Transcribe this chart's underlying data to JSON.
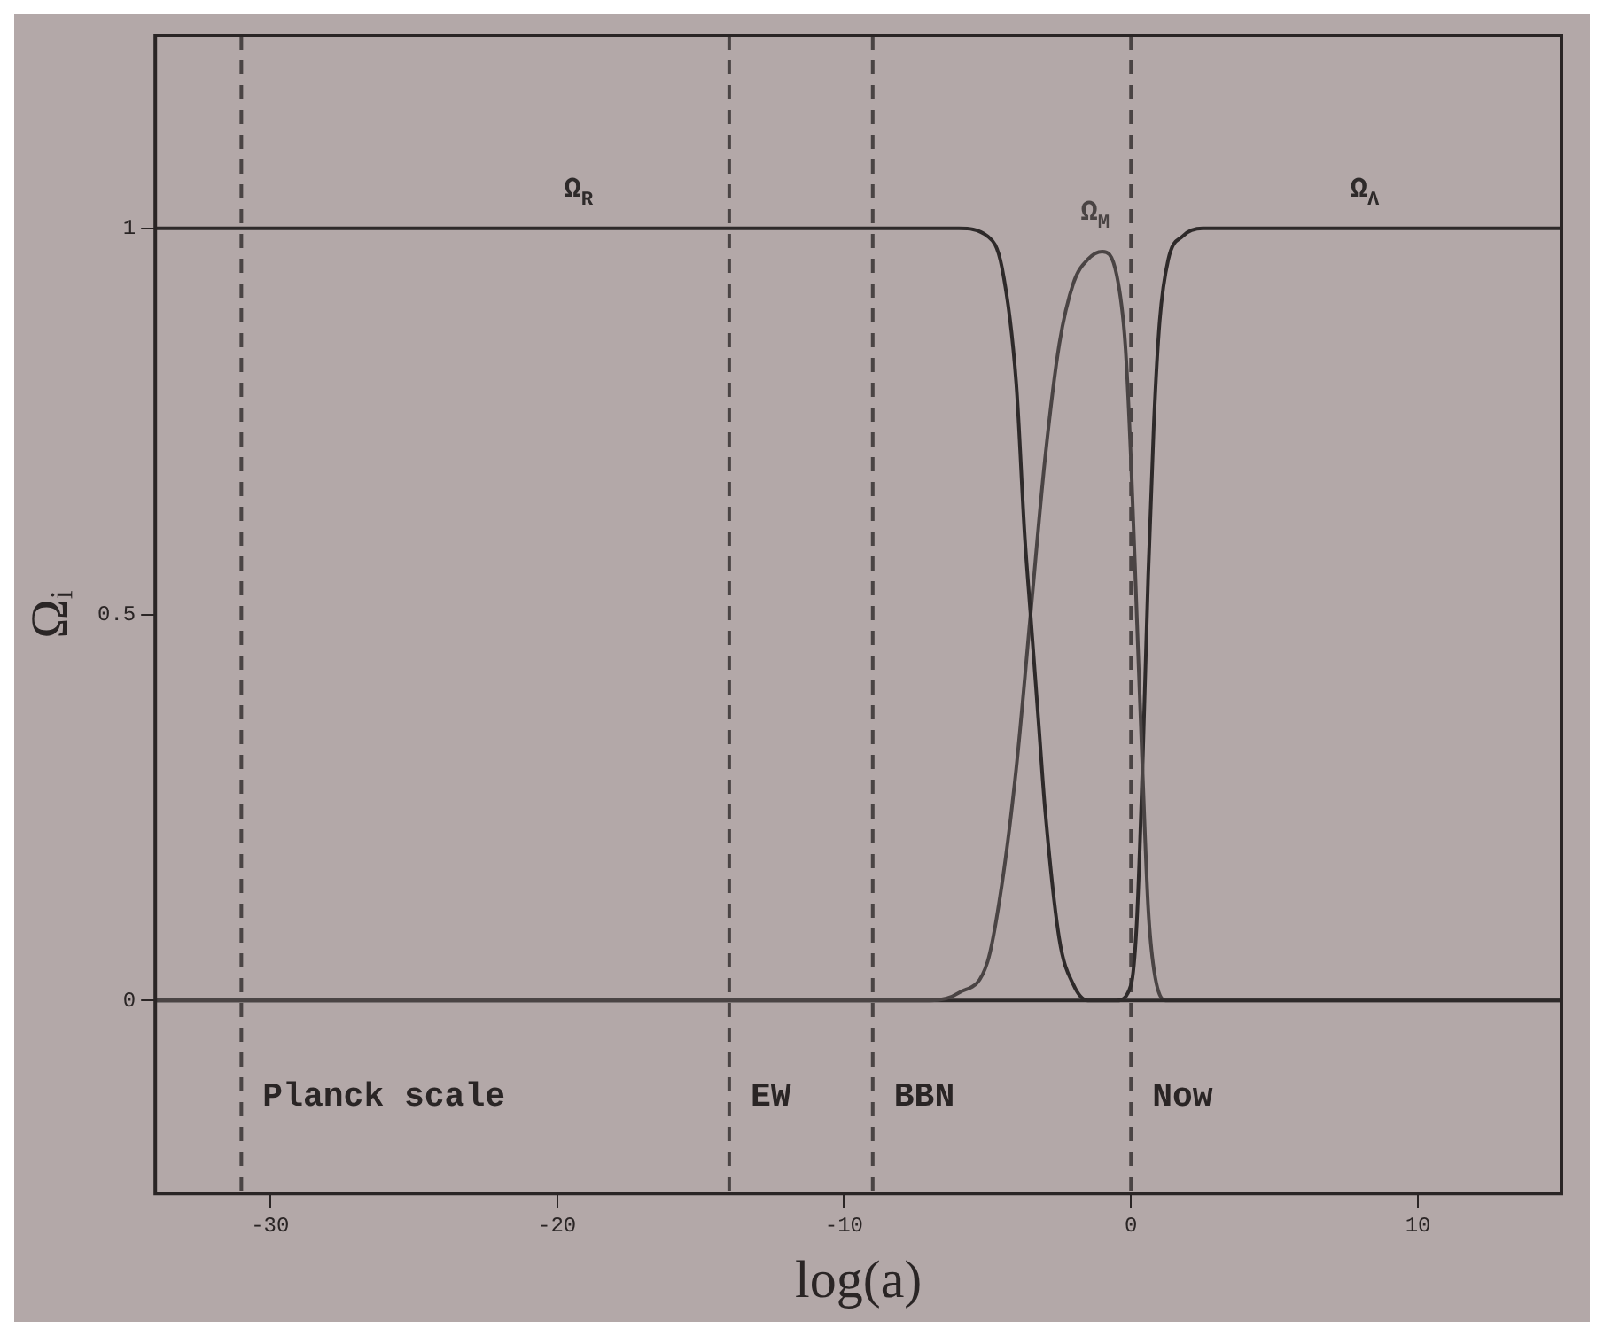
{
  "chart_data": {
    "type": "line",
    "xlabel": "log(a)",
    "ylabel": "Ωᵢ",
    "xlim": [
      -34,
      15
    ],
    "xticks": [
      -30,
      -20,
      -10,
      0,
      10
    ],
    "ylim": [
      -0.25,
      1.25
    ],
    "yticks": [
      0,
      0.5,
      1
    ],
    "grid": false,
    "legend": false,
    "marker": "none",
    "line_style": "solid",
    "series": [
      {
        "name": "Ω$_{R}$",
        "color": "#2e2a2a",
        "x": [
          -34,
          -6,
          -5,
          -4.5,
          -4,
          -3.7,
          -3.5,
          -3.2,
          -3,
          -2.5,
          -2,
          -1.5,
          15
        ],
        "values": [
          1,
          1,
          0.99,
          0.95,
          0.8,
          0.6,
          0.5,
          0.35,
          0.25,
          0.08,
          0.02,
          0,
          0
        ]
      },
      {
        "name": "Ω$_{M}$",
        "color": "#4a4444",
        "x": [
          -34,
          -7,
          -6,
          -5,
          -4.5,
          -4,
          -3.5,
          -3,
          -2.5,
          -2,
          -1.5,
          -1,
          -0.5,
          -0.2,
          0,
          0.2,
          0.4,
          0.6,
          0.8,
          1.2,
          15
        ],
        "values": [
          0,
          0,
          0.01,
          0.05,
          0.15,
          0.3,
          0.5,
          0.7,
          0.85,
          0.93,
          0.96,
          0.97,
          0.94,
          0.85,
          0.7,
          0.5,
          0.3,
          0.12,
          0.04,
          0,
          0
        ]
      },
      {
        "name": "Ω$_{Λ}$",
        "color": "#2e2a2a",
        "x": [
          -34,
          -0.5,
          0,
          0.2,
          0.4,
          0.6,
          0.8,
          1,
          1.3,
          1.8,
          2.5,
          15
        ],
        "values": [
          0,
          0,
          0.02,
          0.1,
          0.3,
          0.55,
          0.75,
          0.88,
          0.96,
          0.99,
          1,
          1
        ]
      }
    ],
    "ref_lines": [
      {
        "axis": "x",
        "value": -31,
        "label": "Planck scale",
        "color": "#4a4444",
        "line_style": "dashed"
      },
      {
        "axis": "x",
        "value": -14,
        "label": "EW",
        "color": "#4a4444",
        "line_style": "dashed"
      },
      {
        "axis": "x",
        "value": -9,
        "label": "BBN",
        "color": "#4a4444",
        "line_style": "dashed"
      },
      {
        "axis": "x",
        "value": 0,
        "label": "Now",
        "color": "#4a4444",
        "line_style": "dashed"
      }
    ]
  }
}
